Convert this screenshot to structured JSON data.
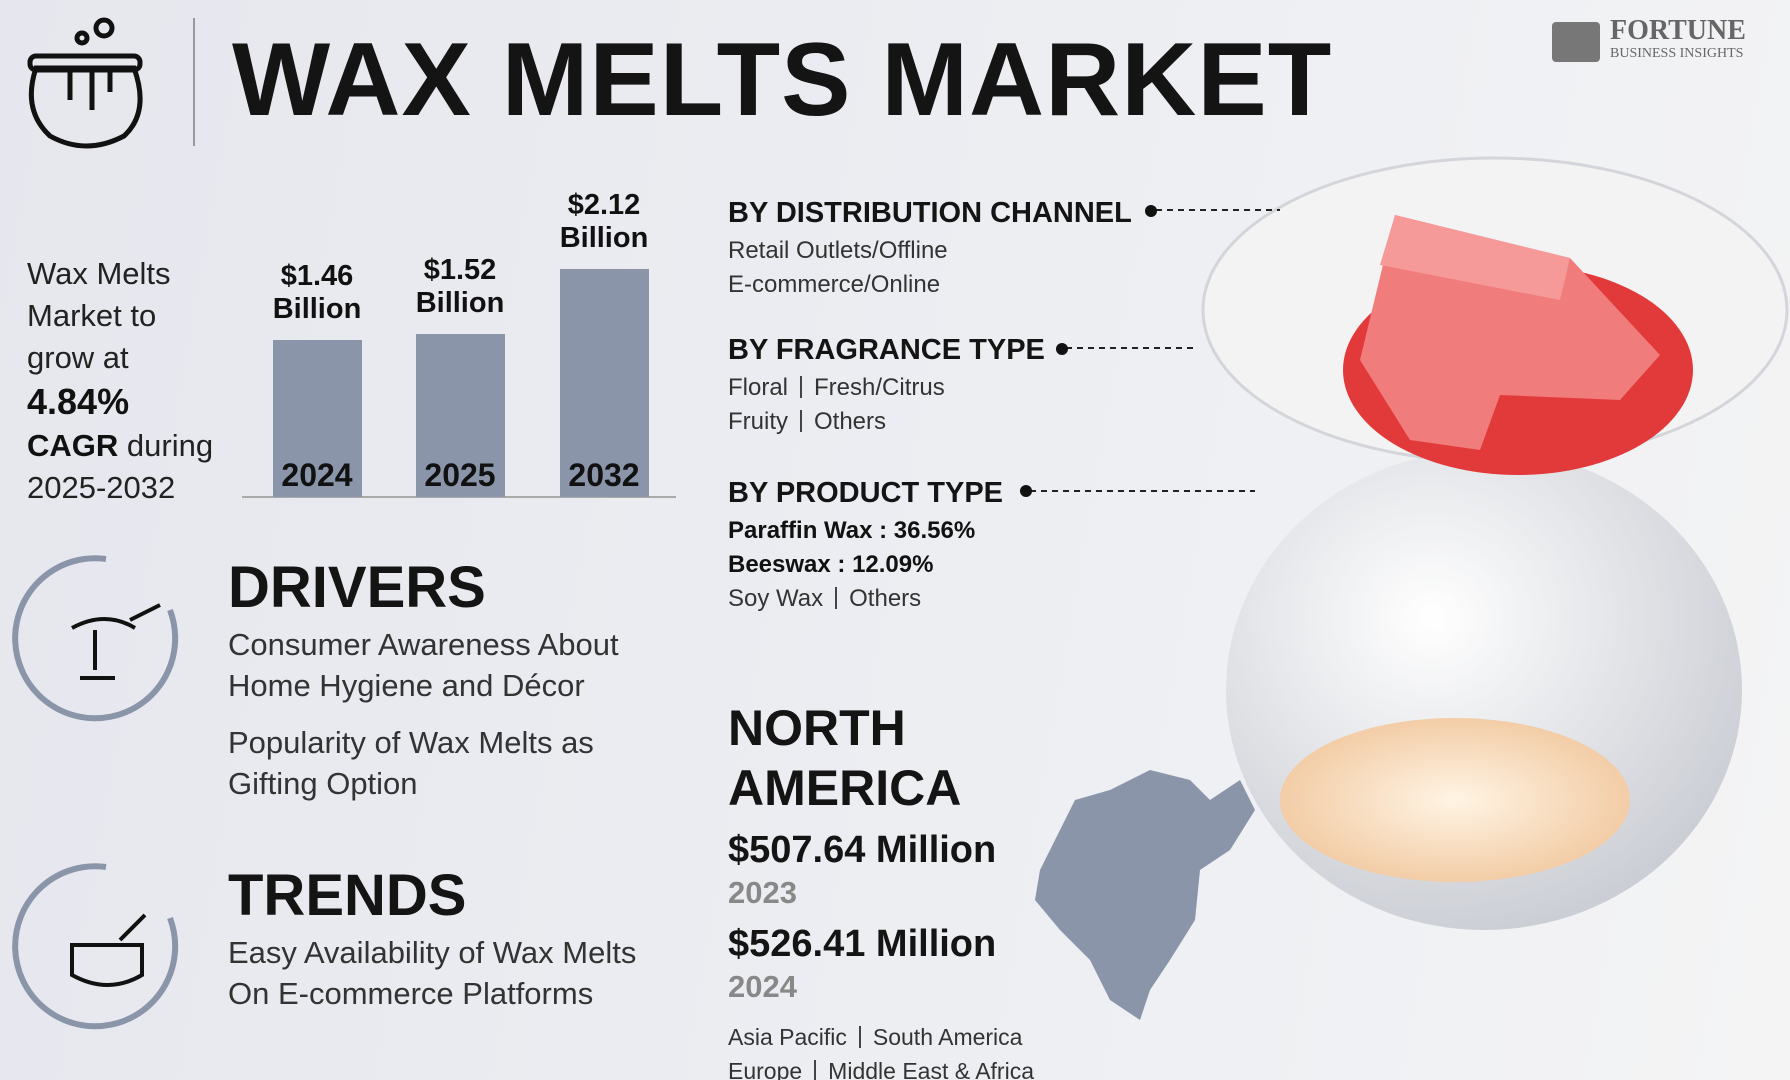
{
  "header": {
    "title": "WAX MELTS MARKET",
    "logo": {
      "name": "FORTUNE",
      "tagline": "BUSINESS INSIGHTS"
    }
  },
  "summary": {
    "intro": "Wax Melts Market to grow at",
    "cagr": "4.84%",
    "cagr_label": "CAGR",
    "cagr_suffix": "during",
    "period": "2025-2032"
  },
  "chart_data": {
    "type": "bar",
    "categories": [
      "2024",
      "2025",
      "2032"
    ],
    "values": [
      1.46,
      1.52,
      2.12
    ],
    "value_labels": [
      "$1.46 Billion",
      "$1.52 Billion",
      "$2.12 Billion"
    ],
    "color": "#8a95aa"
  },
  "drivers": {
    "title": "DRIVERS",
    "items": [
      "Consumer Awareness About Home Hygiene and Décor",
      "Popularity of Wax Melts as Gifting Option"
    ]
  },
  "trends": {
    "title": "TRENDS",
    "items": [
      "Easy Availability of Wax Melts On E-commerce Platforms"
    ]
  },
  "segments": [
    {
      "title": "BY DISTRIBUTION CHANNEL",
      "rows": [
        [
          "Retail Outlets/Offline"
        ],
        [
          "E-commerce/Online"
        ]
      ]
    },
    {
      "title": "BY FRAGRANCE TYPE",
      "rows": [
        [
          "Floral",
          "Fresh/Citrus"
        ],
        [
          "Fruity",
          "Others"
        ]
      ]
    },
    {
      "title": "BY PRODUCT TYPE",
      "highlights": [
        "Paraffin Wax : 36.56%",
        "Beeswax : 12.09%"
      ],
      "rows": [
        [
          "Soy Wax",
          "Others"
        ]
      ]
    }
  ],
  "region": {
    "title": "NORTH AMERICA",
    "figures": [
      {
        "value": "$507.64 Million",
        "year": "2023"
      },
      {
        "value": "$526.41 Million",
        "year": "2024"
      }
    ],
    "others": [
      [
        "Asia Pacific",
        "South America"
      ],
      [
        "Europe",
        "Middle East & Africa"
      ]
    ]
  }
}
